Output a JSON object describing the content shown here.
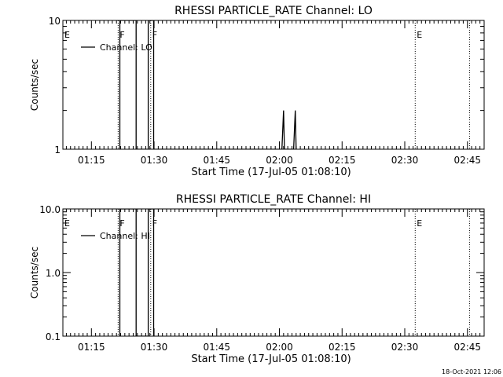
{
  "footer": {
    "timestamp": "18-Oct-2021 12:06"
  },
  "x_axis": {
    "start_min": 68.17,
    "end_min": 169,
    "ticks": [
      {
        "min": 75,
        "label": "01:15"
      },
      {
        "min": 90,
        "label": "01:30"
      },
      {
        "min": 105,
        "label": "01:45"
      },
      {
        "min": 120,
        "label": "02:00"
      },
      {
        "min": 135,
        "label": "02:15"
      },
      {
        "min": 150,
        "label": "02:30"
      },
      {
        "min": 165,
        "label": "02:45"
      }
    ],
    "minor_step": 1,
    "label": "Start Time (17-Jul-05 01:08:10)"
  },
  "chart_data": [
    {
      "type": "line",
      "title": "RHESSI PARTICLE_RATE Channel: LO",
      "ylabel": "Counts/sec",
      "yscale": "log",
      "ylim": [
        1,
        10
      ],
      "ticks": [
        {
          "value": 1,
          "label": "1"
        },
        {
          "value": 10,
          "label": "10"
        }
      ],
      "legend": {
        "entries": [
          "Channel: LO"
        ],
        "placement": "top-left"
      },
      "series": [
        {
          "name": "Channel: LO",
          "x": [
            81.8,
            81.8,
            85.7,
            85.7,
            88.6,
            88.6,
            89.9,
            89.9,
            120.6,
            121.0,
            121.2,
            123.4,
            123.8,
            124.0
          ],
          "y": [
            1,
            10,
            10,
            1,
            1,
            10,
            10,
            1,
            1,
            2,
            1,
            1,
            2,
            1
          ]
        }
      ],
      "markers": [
        {
          "label": "E",
          "x": 68.17,
          "line": false
        },
        {
          "label": "F",
          "x": 81.4,
          "line": true
        },
        {
          "label": "F",
          "x": 89.2,
          "line": true
        },
        {
          "label": "E",
          "x": 152.5,
          "line": true
        },
        {
          "label": "",
          "x": 165.5,
          "line": true
        }
      ]
    },
    {
      "type": "line",
      "title": "RHESSI PARTICLE_RATE Channel: HI",
      "ylabel": "Counts/sec",
      "yscale": "log",
      "ylim": [
        0.1,
        10
      ],
      "ticks": [
        {
          "value": 0.1,
          "label": "0.1"
        },
        {
          "value": 1,
          "label": "1.0"
        },
        {
          "value": 10,
          "label": "10.0"
        }
      ],
      "legend": {
        "entries": [
          "Channel: HI"
        ],
        "placement": "top-left"
      },
      "series": [
        {
          "name": "Channel: HI",
          "x": [
            81.8,
            81.8,
            85.7,
            85.7,
            88.6,
            88.6,
            89.9,
            89.9
          ],
          "y": [
            0.1,
            10,
            10,
            0.1,
            0.1,
            10,
            10,
            0.1
          ]
        }
      ],
      "markers": [
        {
          "label": "E",
          "x": 68.17,
          "line": false
        },
        {
          "label": "F",
          "x": 81.4,
          "line": true
        },
        {
          "label": "F",
          "x": 89.2,
          "line": true
        },
        {
          "label": "E",
          "x": 152.5,
          "line": true
        },
        {
          "label": "",
          "x": 165.5,
          "line": true
        }
      ]
    }
  ]
}
